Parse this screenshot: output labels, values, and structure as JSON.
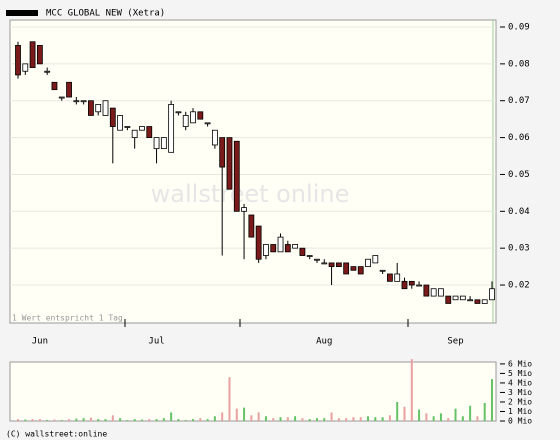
{
  "chart_data": {
    "type": "candlestick",
    "legend": "MCC GLOBAL NEW (Xetra)",
    "watermark": "wallstreet online",
    "note": "1 Wert entspricht 1 Tag",
    "copyright": "(C) wallstreet:online",
    "categories": [
      null,
      null,
      null,
      "Jun",
      null,
      null,
      null,
      null,
      null,
      null,
      null,
      null,
      null,
      null,
      null,
      null,
      null,
      null,
      null,
      "Jul",
      null,
      null,
      null,
      null,
      null,
      null,
      null,
      null,
      null,
      null,
      null,
      null,
      null,
      null,
      null,
      null,
      null,
      null,
      null,
      null,
      null,
      null,
      "Aug",
      null,
      null,
      null,
      null,
      null,
      null,
      null,
      null,
      null,
      null,
      null,
      null,
      null,
      null,
      null,
      null,
      null,
      "Sep",
      null,
      null,
      null,
      null,
      null
    ],
    "open": [
      0.085,
      0.078,
      0.086,
      0.085,
      0.078,
      0.075,
      0.071,
      0.075,
      0.07,
      0.07,
      0.07,
      0.067,
      0.066,
      0.068,
      0.062,
      0.063,
      0.06,
      0.062,
      0.063,
      0.057,
      0.057,
      0.056,
      0.067,
      0.063,
      0.064,
      0.067,
      0.064,
      0.058,
      0.06,
      0.06,
      0.059,
      0.04,
      0.039,
      0.036,
      0.028,
      0.031,
      0.029,
      0.031,
      0.03,
      0.03,
      0.028,
      0.027,
      0.026,
      0.026,
      0.026,
      0.026,
      0.025,
      0.025,
      0.025,
      0.026,
      0.024,
      0.023,
      0.021,
      0.021,
      0.021,
      0.02,
      0.02,
      0.017,
      0.017,
      0.017,
      0.016,
      0.016,
      0.016,
      0.016,
      0.015,
      0.016
    ],
    "high": [
      0.086,
      0.08,
      0.086,
      0.085,
      0.079,
      0.075,
      0.071,
      0.075,
      0.071,
      0.07,
      0.07,
      0.069,
      0.07,
      0.068,
      0.066,
      0.063,
      0.062,
      0.063,
      0.063,
      0.06,
      0.06,
      0.07,
      0.067,
      0.067,
      0.068,
      0.067,
      0.064,
      0.062,
      0.06,
      0.06,
      0.059,
      0.042,
      0.039,
      0.036,
      0.031,
      0.031,
      0.034,
      0.032,
      0.031,
      0.03,
      0.028,
      0.027,
      0.027,
      0.026,
      0.026,
      0.026,
      0.025,
      0.025,
      0.027,
      0.028,
      0.024,
      0.023,
      0.026,
      0.022,
      0.021,
      0.021,
      0.02,
      0.019,
      0.019,
      0.017,
      0.017,
      0.017,
      0.017,
      0.016,
      0.016,
      0.021
    ],
    "low": [
      0.076,
      0.077,
      0.079,
      0.08,
      0.077,
      0.073,
      0.07,
      0.071,
      0.069,
      0.069,
      0.066,
      0.066,
      0.066,
      0.053,
      0.062,
      0.062,
      0.057,
      0.062,
      0.06,
      0.053,
      0.057,
      0.056,
      0.066,
      0.062,
      0.064,
      0.065,
      0.063,
      0.057,
      0.028,
      0.046,
      0.04,
      0.027,
      0.033,
      0.026,
      0.027,
      0.029,
      0.029,
      0.029,
      0.03,
      0.028,
      0.027,
      0.026,
      0.026,
      0.02,
      0.025,
      0.023,
      0.024,
      0.023,
      0.025,
      0.026,
      0.023,
      0.021,
      0.021,
      0.019,
      0.019,
      0.02,
      0.017,
      0.017,
      0.017,
      0.015,
      0.016,
      0.016,
      0.016,
      0.015,
      0.015,
      0.016
    ],
    "close": [
      0.077,
      0.08,
      0.079,
      0.08,
      0.078,
      0.073,
      0.071,
      0.071,
      0.07,
      0.07,
      0.066,
      0.069,
      0.07,
      0.063,
      0.066,
      0.063,
      0.062,
      0.063,
      0.06,
      0.06,
      0.06,
      0.069,
      0.067,
      0.066,
      0.067,
      0.065,
      0.064,
      0.062,
      0.052,
      0.046,
      0.04,
      0.041,
      0.033,
      0.027,
      0.031,
      0.029,
      0.033,
      0.029,
      0.031,
      0.028,
      0.028,
      0.027,
      0.026,
      0.025,
      0.025,
      0.023,
      0.024,
      0.023,
      0.027,
      0.028,
      0.024,
      0.021,
      0.023,
      0.019,
      0.02,
      0.02,
      0.017,
      0.019,
      0.019,
      0.015,
      0.017,
      0.017,
      0.016,
      0.015,
      0.016,
      0.019
    ],
    "volume": [
      0.2,
      0.15,
      0.2,
      0.2,
      0.1,
      0.15,
      0.1,
      0.2,
      0.25,
      0.3,
      0.35,
      0.2,
      0.2,
      0.6,
      0.3,
      0.1,
      0.2,
      0.15,
      0.2,
      0.2,
      0.3,
      0.9,
      0.2,
      0.1,
      0.2,
      0.3,
      0.2,
      0.5,
      0.9,
      4.6,
      1.3,
      1.4,
      0.6,
      0.9,
      0.5,
      0.3,
      0.4,
      0.4,
      0.5,
      0.3,
      0.2,
      0.3,
      0.3,
      0.9,
      0.3,
      0.3,
      0.4,
      0.4,
      0.5,
      0.4,
      0.4,
      0.6,
      2.0,
      1.5,
      6.5,
      1.2,
      0.8,
      0.5,
      0.8,
      0.3,
      1.3,
      0.5,
      1.6,
      0.5,
      1.9,
      4.4
    ],
    "up_color": "#ffffff",
    "down_color": "#7a1a1a",
    "volume_up_color": "#66c266",
    "volume_down_color": "#e8a0a0",
    "ylim": [
      0.0097,
      0.0919
    ],
    "yticks": [
      0.09,
      0.08,
      0.07,
      0.06,
      0.05,
      0.04,
      0.03,
      0.02
    ],
    "vlim": [
      0,
      6.2
    ],
    "vticks": [
      {
        "value": 6,
        "label": "6 Mio"
      },
      {
        "value": 5,
        "label": "5 Mio"
      },
      {
        "value": 4,
        "label": "4 Mio"
      },
      {
        "value": 3,
        "label": "3 Mio"
      },
      {
        "value": 2,
        "label": "2 Mio"
      },
      {
        "value": 1,
        "label": "1 Mio"
      },
      {
        "value": 0,
        "label": "0 Mio"
      }
    ],
    "grid": true
  }
}
